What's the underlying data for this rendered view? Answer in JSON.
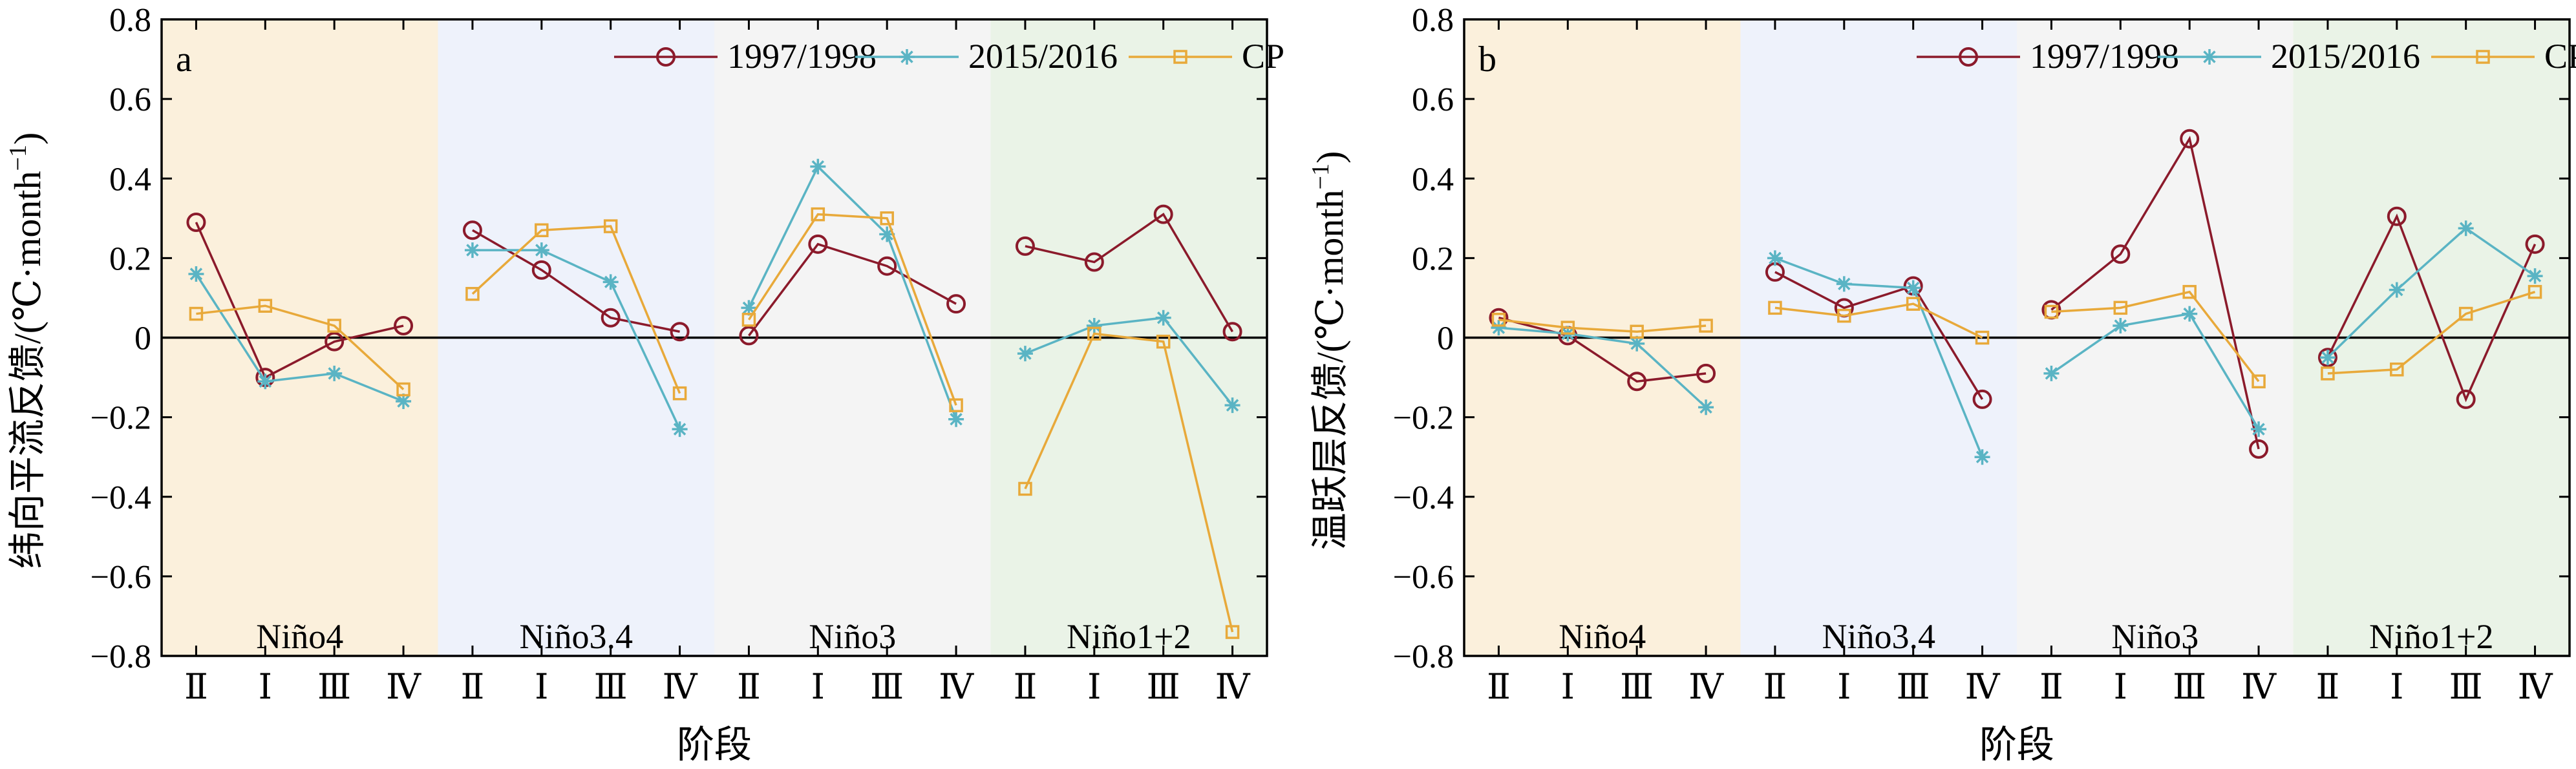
{
  "chart_data": [
    {
      "type": "line",
      "panel_label": "a",
      "xlabel": "阶段",
      "ylabel": "纬向平流反馈/(℃·month",
      "ylabel_sup": "−1",
      "ylabel_close": ")",
      "ylim": [
        -0.8,
        0.8
      ],
      "yticks": [
        "0.8",
        "0.6",
        "0.4",
        "0.2",
        "0",
        "−0.2",
        "−0.4",
        "−0.6",
        "−0.8"
      ],
      "ytick_values": [
        0.8,
        0.6,
        0.4,
        0.2,
        0,
        -0.2,
        -0.4,
        -0.6,
        -0.8
      ],
      "grid": false,
      "legend_position": "top-right",
      "regions": [
        {
          "name": "Niño4",
          "color": "#fbf0dc",
          "stages": [
            "Ⅱ",
            "Ⅰ",
            "Ⅲ",
            "Ⅳ"
          ]
        },
        {
          "name": "Niño3.4",
          "color": "#eef2fb",
          "stages": [
            "Ⅱ",
            "Ⅰ",
            "Ⅲ",
            "Ⅳ"
          ]
        },
        {
          "name": "Niño3",
          "color": "#f4f4f4",
          "stages": [
            "Ⅱ",
            "Ⅰ",
            "Ⅲ",
            "Ⅳ"
          ]
        },
        {
          "name": "Niño1+2",
          "color": "#eaf3e7",
          "stages": [
            "Ⅱ",
            "Ⅰ",
            "Ⅲ",
            "Ⅳ"
          ]
        }
      ],
      "series": [
        {
          "name": "1997/1998",
          "color": "#8b1a2b",
          "marker": "circle",
          "values": [
            [
              0.29,
              -0.1,
              -0.01,
              0.03
            ],
            [
              0.27,
              0.17,
              0.05,
              0.015
            ],
            [
              0.005,
              0.235,
              0.18,
              0.085
            ],
            [
              0.23,
              0.19,
              0.31,
              0.015
            ]
          ]
        },
        {
          "name": "2015/2016",
          "color": "#5ab4c4",
          "marker": "star",
          "values": [
            [
              0.16,
              -0.11,
              -0.09,
              -0.16
            ],
            [
              0.22,
              0.22,
              0.14,
              -0.23
            ],
            [
              0.075,
              0.43,
              0.26,
              -0.205
            ],
            [
              -0.04,
              0.03,
              0.05,
              -0.17
            ]
          ]
        },
        {
          "name": "CP",
          "color": "#e8a93a",
          "marker": "square",
          "values": [
            [
              0.06,
              0.08,
              0.03,
              -0.13
            ],
            [
              0.11,
              0.27,
              0.28,
              -0.14
            ],
            [
              0.045,
              0.31,
              0.3,
              -0.17
            ],
            [
              -0.38,
              0.01,
              -0.01,
              -0.74
            ]
          ]
        }
      ]
    },
    {
      "type": "line",
      "panel_label": "b",
      "xlabel": "阶段",
      "ylabel": "温跃层反馈/(℃·month",
      "ylabel_sup": "−1",
      "ylabel_close": ")",
      "ylim": [
        -0.8,
        0.8
      ],
      "yticks": [
        "0.8",
        "0.6",
        "0.4",
        "0.2",
        "0",
        "−0.2",
        "−0.4",
        "−0.6",
        "−0.8"
      ],
      "ytick_values": [
        0.8,
        0.6,
        0.4,
        0.2,
        0,
        -0.2,
        -0.4,
        -0.6,
        -0.8
      ],
      "grid": false,
      "legend_position": "top-right",
      "regions": [
        {
          "name": "Niño4",
          "color": "#fbf0dc",
          "stages": [
            "Ⅱ",
            "Ⅰ",
            "Ⅲ",
            "Ⅳ"
          ]
        },
        {
          "name": "Niño3.4",
          "color": "#eef2fb",
          "stages": [
            "Ⅱ",
            "Ⅰ",
            "Ⅲ",
            "Ⅳ"
          ]
        },
        {
          "name": "Niño3",
          "color": "#f4f4f4",
          "stages": [
            "Ⅱ",
            "Ⅰ",
            "Ⅲ",
            "Ⅳ"
          ]
        },
        {
          "name": "Niño1+2",
          "color": "#eaf3e7",
          "stages": [
            "Ⅱ",
            "Ⅰ",
            "Ⅲ",
            "Ⅳ"
          ]
        }
      ],
      "series": [
        {
          "name": "1997/1998",
          "color": "#8b1a2b",
          "marker": "circle",
          "values": [
            [
              0.05,
              0.005,
              -0.11,
              -0.09
            ],
            [
              0.165,
              0.075,
              0.13,
              -0.155
            ],
            [
              0.07,
              0.21,
              0.5,
              -0.28
            ],
            [
              -0.05,
              0.305,
              -0.155,
              0.235
            ]
          ]
        },
        {
          "name": "2015/2016",
          "color": "#5ab4c4",
          "marker": "star",
          "values": [
            [
              0.025,
              0.01,
              -0.015,
              -0.175
            ],
            [
              0.2,
              0.135,
              0.125,
              -0.3
            ],
            [
              -0.09,
              0.03,
              0.06,
              -0.23
            ],
            [
              -0.05,
              0.12,
              0.275,
              0.155
            ]
          ]
        },
        {
          "name": "CP",
          "color": "#e8a93a",
          "marker": "square",
          "values": [
            [
              0.045,
              0.025,
              0.015,
              0.03
            ],
            [
              0.075,
              0.055,
              0.085,
              0.0
            ],
            [
              0.065,
              0.075,
              0.115,
              -0.11
            ],
            [
              -0.09,
              -0.08,
              0.06,
              0.115
            ]
          ]
        }
      ]
    }
  ]
}
